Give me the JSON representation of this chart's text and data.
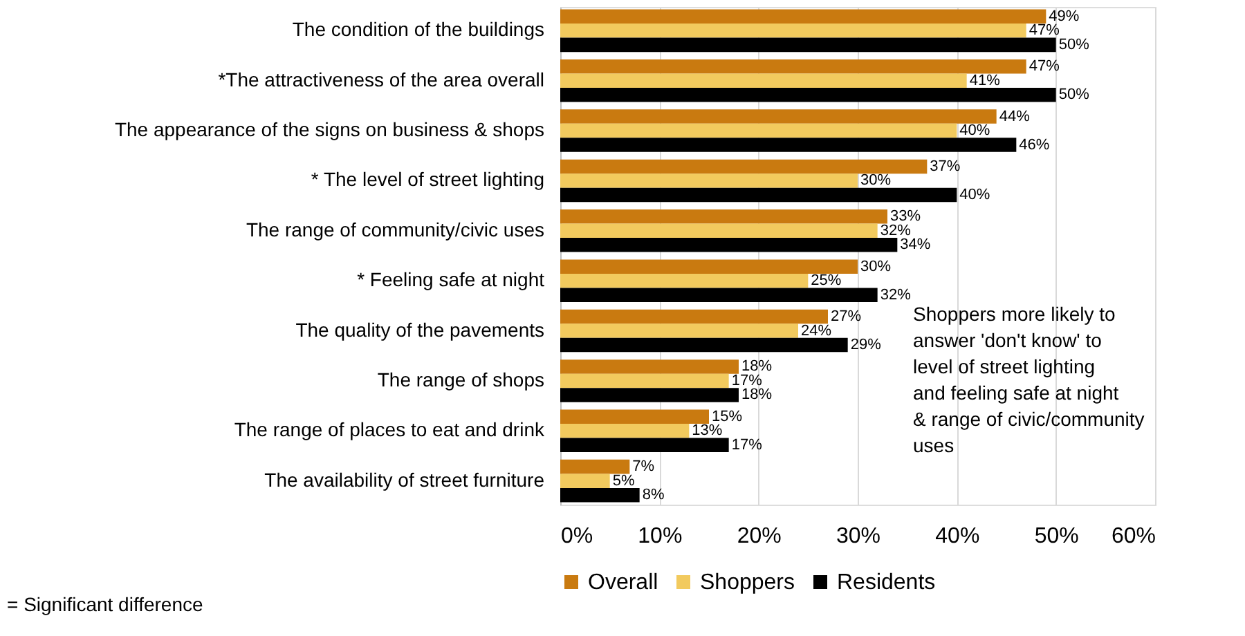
{
  "chart_data": {
    "type": "bar",
    "orientation": "horizontal",
    "categories": [
      "The condition of the buildings",
      "*The attractiveness of the area overall",
      "The appearance of the signs on business & shops",
      "* The level of street lighting",
      "The range of community/civic uses",
      "* Feeling safe at night",
      "The quality of the pavements",
      "The range of shops",
      "The range of places to eat and drink",
      "The availability of street furniture"
    ],
    "series": [
      {
        "name": "Overall",
        "color": "#c97a10",
        "values": [
          49,
          47,
          44,
          37,
          33,
          30,
          27,
          18,
          15,
          7
        ],
        "value_labels": [
          "49%",
          "47%",
          "44%",
          "37%",
          "33%",
          "30%",
          "27%",
          "18%",
          "15%",
          "7%"
        ]
      },
      {
        "name": "Shoppers",
        "color": "#f2ca5e",
        "values": [
          47,
          41,
          40,
          30,
          32,
          25,
          24,
          17,
          13,
          5
        ],
        "value_labels": [
          "47%",
          "41%",
          "40%",
          "30%",
          "32%",
          "25%",
          "24%",
          "17%",
          "13%",
          "5%"
        ]
      },
      {
        "name": "Residents",
        "color": "#000000",
        "values": [
          50,
          50,
          46,
          40,
          34,
          32,
          29,
          18,
          17,
          8
        ],
        "value_labels": [
          "50%",
          "50%",
          "46%",
          "40%",
          "34%",
          "32%",
          "29%",
          "18%",
          "17%",
          "8%"
        ]
      }
    ],
    "xlim": [
      0,
      60
    ],
    "xticks": [
      {
        "value": 0,
        "label": "0%"
      },
      {
        "value": 10,
        "label": "10%"
      },
      {
        "value": 20,
        "label": "20%"
      },
      {
        "value": 30,
        "label": "30%"
      },
      {
        "value": 40,
        "label": "40%"
      },
      {
        "value": 50,
        "label": "50%"
      },
      {
        "value": 60,
        "label": "60%"
      }
    ],
    "grid": "x",
    "legend": "bottom",
    "annotations": [
      "Shoppers more likely to answer 'don't know' to level of street lighting and feeling safe at night & range of civic/community uses",
      "= Significant difference"
    ]
  }
}
